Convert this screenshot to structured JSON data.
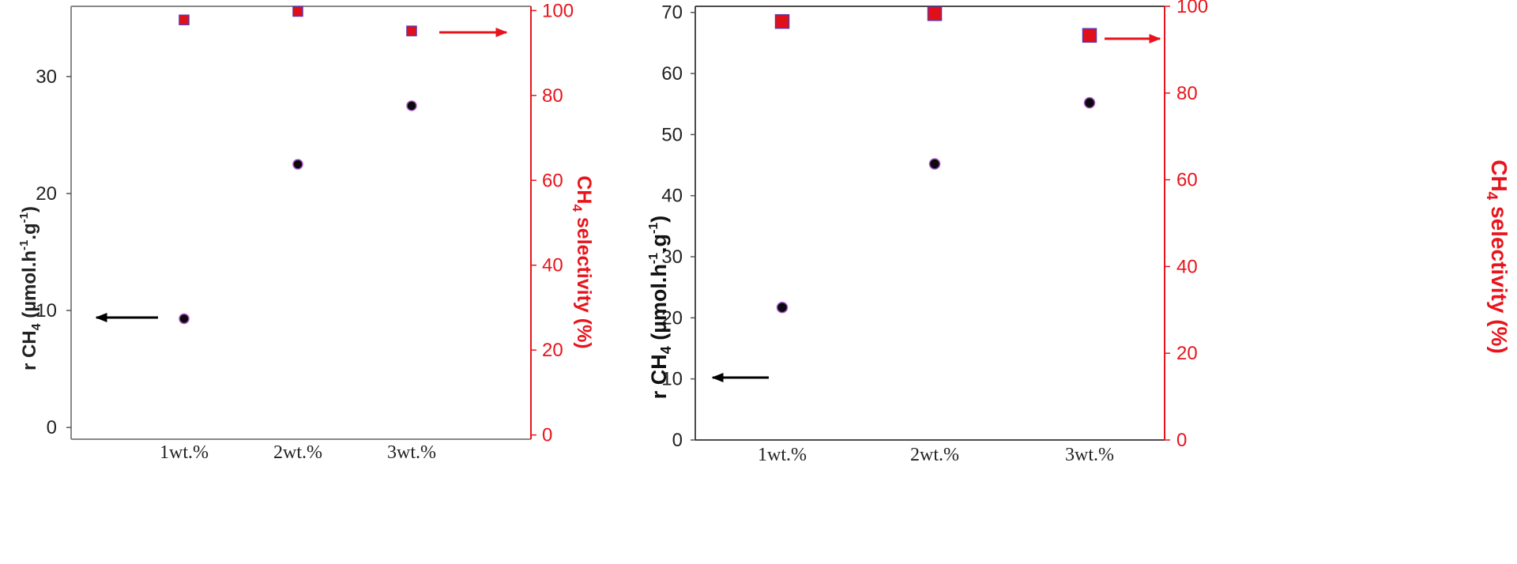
{
  "colors": {
    "left_axis": "#222222",
    "right_axis": "#e8141c",
    "circle_fill": "#0a0a0a",
    "circle_edge": "#a855c8",
    "square_fill": "#e0101a",
    "square_edge": "#6b2fa0",
    "arrow_left": "#000000",
    "arrow_right": "#e8141c"
  },
  "chart_data": [
    {
      "type": "scatter",
      "categories": [
        "1wt.%",
        "2wt.%",
        "3wt.%"
      ],
      "y1label": {
        "pre": "r CH",
        "sub": "4",
        "post": " (µmol.h",
        "sup1": "-1",
        "mid": ".g",
        "sup2": "-1",
        "end": ")"
      },
      "y2label": {
        "pre": "CH",
        "sub": "4",
        "post": " selectivity (%)"
      },
      "y1lim": [
        -1,
        36
      ],
      "y1ticks": [
        0,
        10,
        20,
        30
      ],
      "y2lim": [
        -1,
        101
      ],
      "y2ticks": [
        0,
        20,
        40,
        60,
        80,
        100
      ],
      "series": [
        {
          "axis": "left",
          "marker": "circle",
          "values": [
            9.3,
            22.5,
            27.5
          ]
        },
        {
          "axis": "right",
          "marker": "square",
          "values": [
            97.8,
            99.8,
            95.2
          ]
        }
      ]
    },
    {
      "type": "scatter",
      "categories": [
        "1wt.%",
        "2wt.%",
        "3wt.%"
      ],
      "y1label": {
        "pre": "r CH",
        "sub": "4",
        "post": " (µmol.h",
        "sup1": "-1",
        "mid": ".g",
        "sup2": "-1",
        "end": ")"
      },
      "y2label": {
        "pre": "CH",
        "sub": "4",
        "post": " selectivity (%)"
      },
      "y1lim": [
        0,
        71
      ],
      "y1ticks": [
        0,
        10,
        20,
        30,
        40,
        50,
        60,
        70
      ],
      "y2lim": [
        0,
        100
      ],
      "y2ticks": [
        0,
        20,
        40,
        60,
        80,
        100
      ],
      "series": [
        {
          "axis": "left",
          "marker": "circle",
          "values": [
            21.7,
            45.2,
            55.2
          ]
        },
        {
          "axis": "right",
          "marker": "square",
          "values": [
            96.5,
            98.3,
            93.3
          ]
        }
      ]
    }
  ]
}
